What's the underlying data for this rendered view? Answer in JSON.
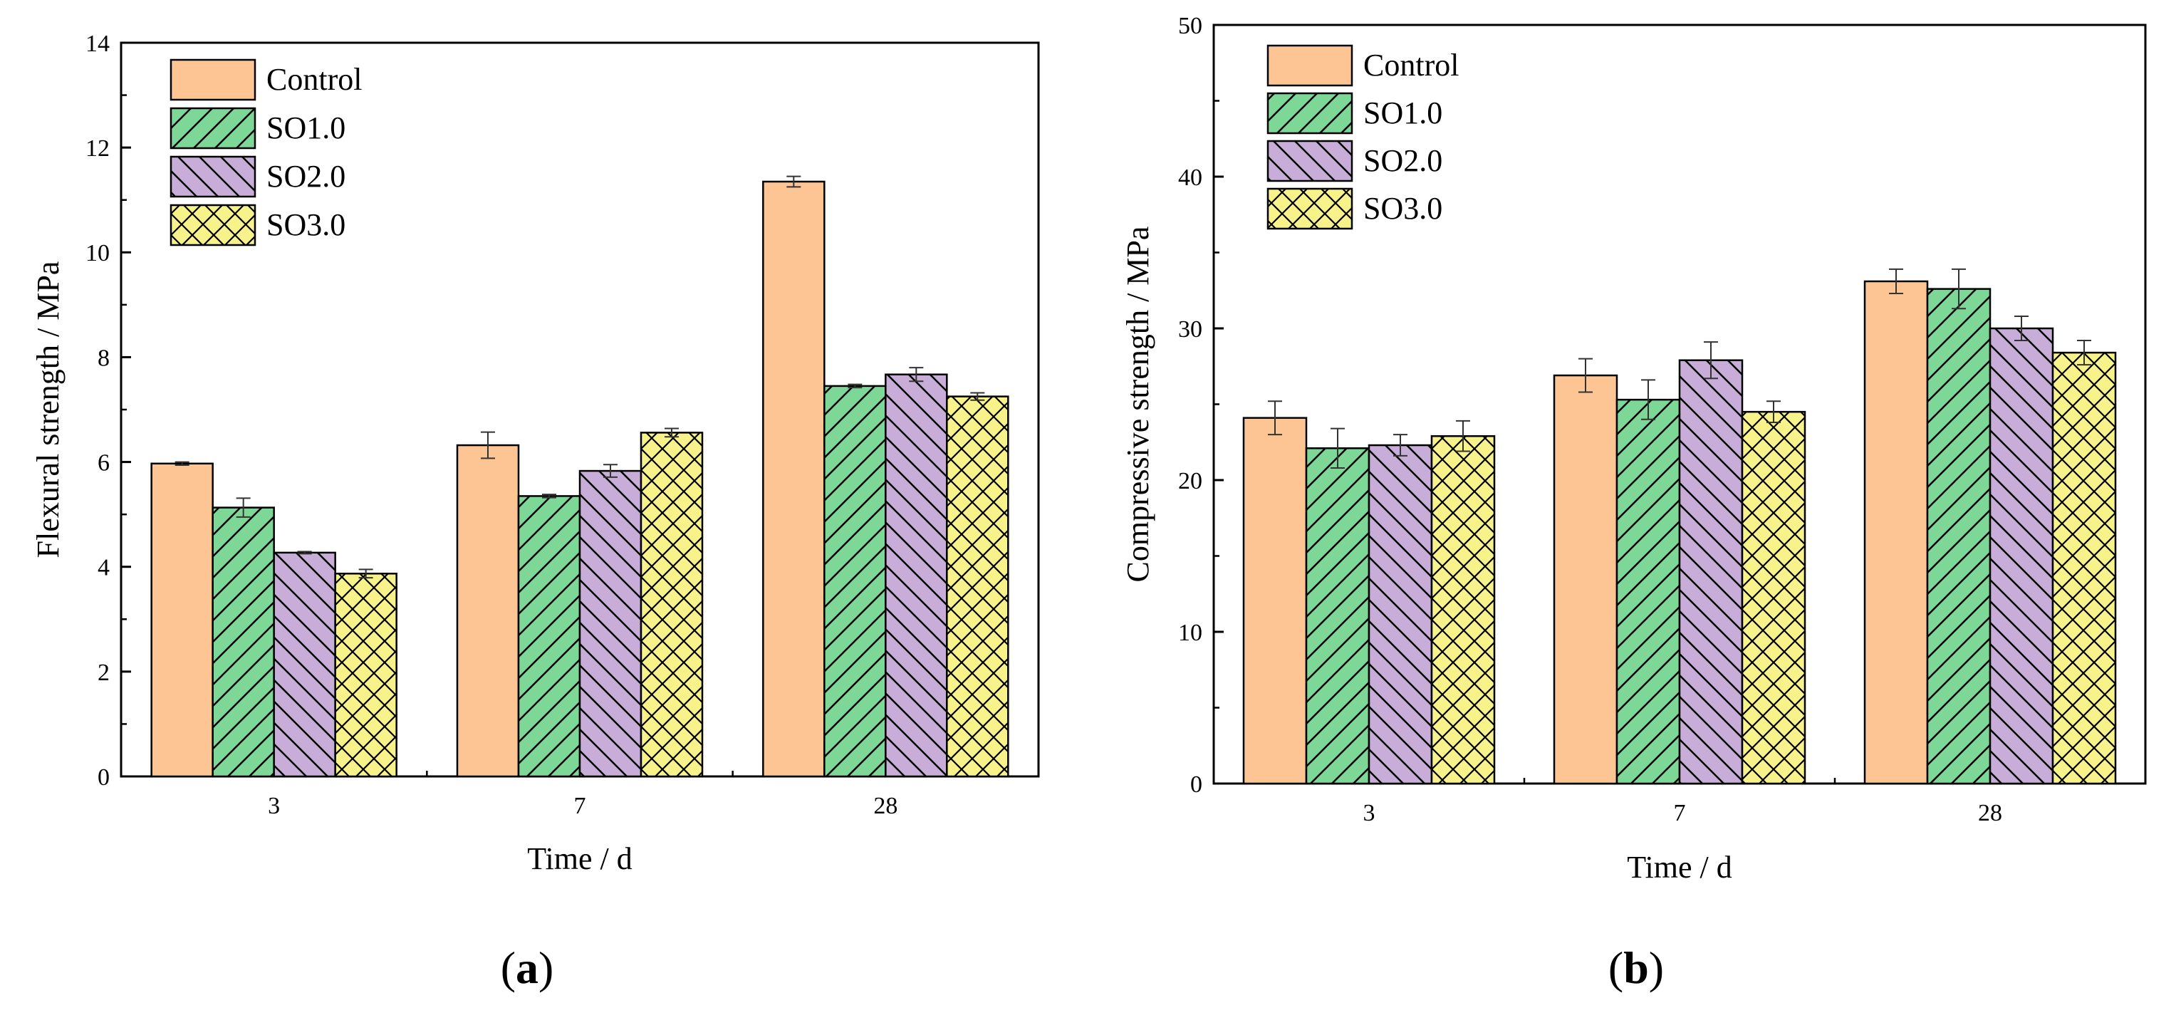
{
  "chart_data": [
    {
      "panel_label": "(a)",
      "type": "bar",
      "xlabel": "Time / d",
      "ylabel": "Flexural strength / MPa",
      "categories": [
        "3",
        "7",
        "28"
      ],
      "ylim": [
        0,
        14
      ],
      "yticks": [
        0,
        2,
        4,
        6,
        8,
        10,
        12,
        14
      ],
      "legend_position": "top-left",
      "series": [
        {
          "name": "Control",
          "values": [
            5.97,
            6.32,
            11.35
          ],
          "errors": [
            0.03,
            0.25,
            0.1
          ]
        },
        {
          "name": "SO1.0",
          "values": [
            5.13,
            5.35,
            7.45
          ],
          "errors": [
            0.18,
            0.03,
            0.03
          ]
        },
        {
          "name": "SO2.0",
          "values": [
            4.27,
            5.83,
            7.67
          ],
          "errors": [
            0.02,
            0.12,
            0.13
          ]
        },
        {
          "name": "SO3.0",
          "values": [
            3.87,
            6.56,
            7.25
          ],
          "errors": [
            0.08,
            0.08,
            0.07
          ]
        }
      ]
    },
    {
      "panel_label": "(b)",
      "type": "bar",
      "xlabel": "Time / d",
      "ylabel": "Compressive strength / MPa",
      "categories": [
        "3",
        "7",
        "28"
      ],
      "ylim": [
        0,
        50
      ],
      "yticks": [
        0,
        10,
        20,
        30,
        40,
        50
      ],
      "legend_position": "top-left",
      "series": [
        {
          "name": "Control",
          "values": [
            24.1,
            26.9,
            33.1
          ],
          "errors": [
            1.1,
            1.1,
            0.8
          ]
        },
        {
          "name": "SO1.0",
          "values": [
            22.1,
            25.3,
            32.6
          ],
          "errors": [
            1.3,
            1.3,
            1.3
          ]
        },
        {
          "name": "SO2.0",
          "values": [
            22.3,
            27.9,
            30.0
          ],
          "errors": [
            0.7,
            1.2,
            0.8
          ]
        },
        {
          "name": "SO3.0",
          "values": [
            22.9,
            24.5,
            28.4
          ],
          "errors": [
            1.0,
            0.7,
            0.8
          ]
        }
      ]
    }
  ],
  "style": {
    "series_colors": [
      "#FDC593",
      "#7DD898",
      "#C7ADD8",
      "#F7F28A"
    ],
    "edge_color": "#000000"
  }
}
